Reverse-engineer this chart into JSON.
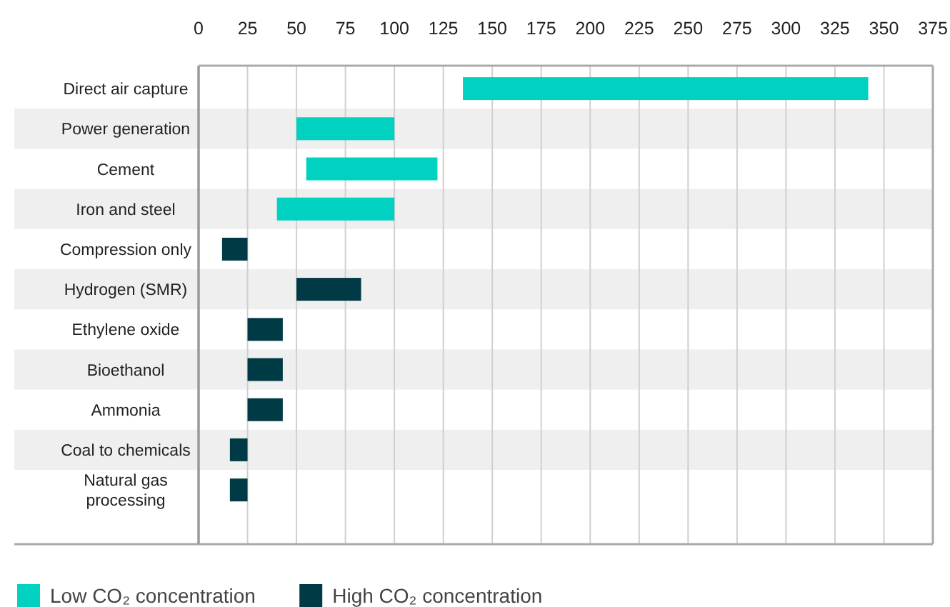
{
  "chart_data": {
    "type": "bar",
    "orientation": "horizontal",
    "categories": [
      "Direct air capture",
      "Power generation",
      "Cement",
      "Iron and steel",
      "Compression only",
      "Hydrogen (SMR)",
      "Ethylene oxide",
      "Bioethanol",
      "Ammonia",
      "Coal to chemicals",
      "Natural gas processing"
    ],
    "series": [
      {
        "name": "Low CO₂ concentration",
        "color": "#00d1c1",
        "base": [
          135,
          50,
          55,
          40,
          null,
          null,
          null,
          null,
          null,
          null,
          null
        ],
        "values": [
          207,
          50,
          67,
          60,
          null,
          null,
          null,
          null,
          null,
          null,
          null
        ]
      },
      {
        "name": "High CO₂ concentration",
        "color": "#003a45",
        "base": [
          null,
          null,
          null,
          null,
          12,
          50,
          25,
          25,
          25,
          16,
          16
        ],
        "values": [
          null,
          null,
          null,
          null,
          13,
          33,
          18,
          18,
          18,
          9,
          9
        ]
      }
    ],
    "xlim": [
      0,
      375
    ],
    "xticks": [
      0,
      25,
      50,
      75,
      100,
      125,
      150,
      175,
      200,
      225,
      250,
      275,
      300,
      325,
      350,
      375
    ],
    "grid": "x",
    "legend": "bottom left"
  }
}
